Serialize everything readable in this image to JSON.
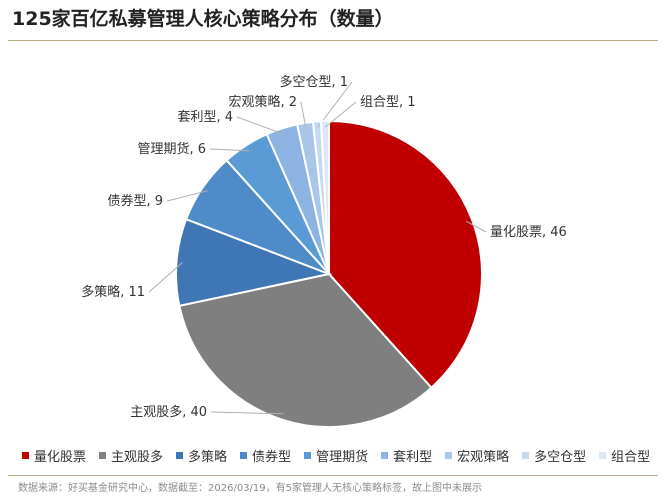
{
  "title": "125家百亿私募管理人核心策略分布（数量）",
  "footer": "数据来源：好买基金研究中心，数据截至：2026/03/19，有5家管理人无核心策略标签，故上图中未展示",
  "chart_data": {
    "type": "pie",
    "title": "125家百亿私募管理人核心策略分布（数量）",
    "legend_position": "bottom",
    "slices": [
      {
        "name": "量化股票",
        "value": 46,
        "label": "量化股票, 46",
        "color": "#c00000"
      },
      {
        "name": "主观股多",
        "value": 40,
        "label": "主观股多, 40",
        "color": "#7f7f7f"
      },
      {
        "name": "多策略",
        "value": 11,
        "label": "多策略, 11",
        "color": "#3f77b6"
      },
      {
        "name": "债券型",
        "value": 9,
        "label": "债券型, 9",
        "color": "#4f8bc9"
      },
      {
        "name": "管理期货",
        "value": 6,
        "label": "管理期货, 6",
        "color": "#5b9bd5"
      },
      {
        "name": "套利型",
        "value": 4,
        "label": "套利型, 4",
        "color": "#8db3e2"
      },
      {
        "name": "宏观策略",
        "value": 2,
        "label": "宏观策略, 2",
        "color": "#a9c6ea"
      },
      {
        "name": "多空仓型",
        "value": 1,
        "label": "多空仓型, 1",
        "color": "#c4d8f0"
      },
      {
        "name": "组合型",
        "value": 1,
        "label": "组合型, 1",
        "color": "#dce8f6"
      }
    ]
  }
}
